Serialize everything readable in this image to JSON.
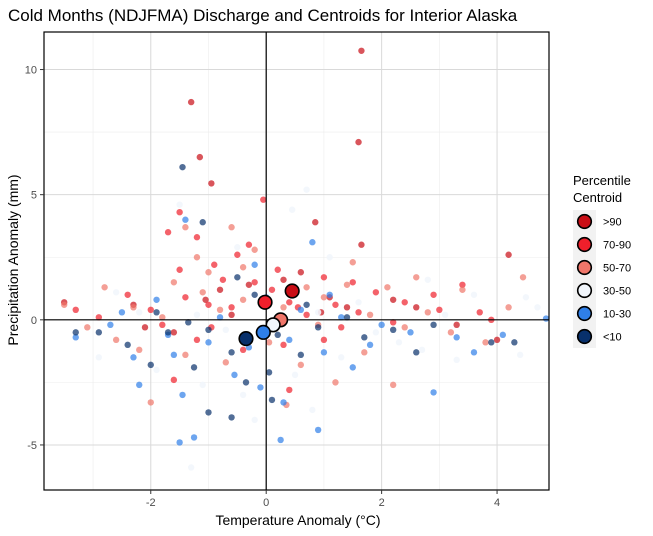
{
  "chart_data": {
    "type": "scatter",
    "title": "Cold Months (NDJFMA) Discharge and Centroids for Interior Alaska",
    "xlabel": "Temperature Anomaly (°C)",
    "ylabel": "Precipitation Anomaly (mm)",
    "xlim": [
      -3.85,
      4.9
    ],
    "ylim": [
      -6.8,
      11.5
    ],
    "x_ticks": [
      -2,
      0,
      2,
      4
    ],
    "y_ticks": [
      -5,
      0,
      5,
      10
    ],
    "x_tick_labels": [
      "-2",
      "0",
      "2",
      "4"
    ],
    "y_tick_labels": [
      "-5",
      "0",
      "5",
      "10"
    ],
    "grid": true,
    "reference_lines": {
      "x": 0,
      "y": 0
    },
    "legend": {
      "title_lines": [
        "Percentile",
        "Centroid"
      ],
      "position": "right",
      "entries": [
        {
          "label": ">90",
          "color": "#c90d15"
        },
        {
          "label": "70-90",
          "color": "#ef1f2b"
        },
        {
          "label": "50-70",
          "color": "#f0766a"
        },
        {
          "label": "30-50",
          "color": "#f2f6fc"
        },
        {
          "label": "10-30",
          "color": "#2f7fe8"
        },
        {
          "label": "<10",
          "color": "#08306b"
        }
      ]
    },
    "centroids": [
      {
        "series": ">90",
        "x": 0.45,
        "y": 1.15
      },
      {
        "series": "70-90",
        "x": -0.02,
        "y": 0.7
      },
      {
        "series": "50-70",
        "x": 0.25,
        "y": 0.0
      },
      {
        "series": "30-50",
        "x": 0.12,
        "y": -0.2
      },
      {
        "series": "10-30",
        "x": -0.05,
        "y": -0.5
      },
      {
        "series": "<10",
        "x": -0.35,
        "y": -0.75
      }
    ],
    "series": [
      {
        "name": ">90",
        "color": "#c90d15",
        "points": [
          [
            1.65,
            10.75
          ],
          [
            -1.3,
            8.7
          ],
          [
            1.6,
            7.1
          ],
          [
            -1.15,
            6.5
          ],
          [
            -0.95,
            5.45
          ],
          [
            0.85,
            3.9
          ],
          [
            1.65,
            3.0
          ],
          [
            4.2,
            2.6
          ],
          [
            0.6,
            1.9
          ],
          [
            0.3,
            1.6
          ],
          [
            -0.8,
            1.2
          ],
          [
            1.1,
            0.9
          ],
          [
            -2.3,
            0.6
          ],
          [
            2.6,
            0.5
          ],
          [
            -0.3,
            1.4
          ],
          [
            0.95,
            0.3
          ],
          [
            -3.5,
            0.7
          ],
          [
            3.3,
            -0.2
          ],
          [
            -1.6,
            -0.5
          ],
          [
            4.0,
            -0.8
          ],
          [
            -0.6,
            0.2
          ],
          [
            2.2,
            0.8
          ],
          [
            -2.1,
            -0.3
          ],
          [
            1.4,
            0.5
          ],
          [
            -1.05,
            0.8
          ]
        ]
      },
      {
        "name": "70-90",
        "color": "#ef1f2b",
        "points": [
          [
            -1.5,
            4.3
          ],
          [
            -0.05,
            4.8
          ],
          [
            -1.2,
            3.3
          ],
          [
            -1.7,
            3.5
          ],
          [
            -0.5,
            2.6
          ],
          [
            -0.9,
            2.2
          ],
          [
            -1.5,
            2.0
          ],
          [
            0.2,
            2.0
          ],
          [
            1.0,
            1.7
          ],
          [
            1.9,
            1.1
          ],
          [
            2.9,
            1.0
          ],
          [
            3.4,
            1.4
          ],
          [
            -2.4,
            1.0
          ],
          [
            -0.2,
            1.5
          ],
          [
            -0.6,
            0.5
          ],
          [
            -1.0,
            0.6
          ],
          [
            0.4,
            0.7
          ],
          [
            0.7,
            0.2
          ],
          [
            1.3,
            -0.3
          ],
          [
            1.6,
            0.3
          ],
          [
            2.2,
            -0.1
          ],
          [
            3.0,
            0.4
          ],
          [
            3.7,
            0.3
          ],
          [
            -2.9,
            0.1
          ],
          [
            -3.3,
            0.4
          ],
          [
            -1.8,
            -0.2
          ],
          [
            -1.2,
            -0.8
          ],
          [
            -0.4,
            -1.2
          ],
          [
            0.3,
            -1.0
          ],
          [
            1.0,
            -0.8
          ],
          [
            -1.6,
            -2.4
          ],
          [
            0.4,
            -2.8
          ],
          [
            -1.4,
            0.9
          ],
          [
            1.5,
            1.5
          ],
          [
            -0.3,
            3.0
          ],
          [
            2.4,
            0.7
          ],
          [
            -0.75,
            1.6
          ],
          [
            0.1,
            1.2
          ],
          [
            -2.0,
            0.4
          ],
          [
            1.2,
            0.6
          ],
          [
            3.9,
            0.0
          ],
          [
            -0.95,
            -0.3
          ],
          [
            0.55,
            0.5
          ]
        ]
      },
      {
        "name": "50-70",
        "color": "#f0766a",
        "points": [
          [
            -1.4,
            3.7
          ],
          [
            -0.6,
            3.7
          ],
          [
            -1.2,
            2.5
          ],
          [
            -0.4,
            2.1
          ],
          [
            1.5,
            2.3
          ],
          [
            -1.6,
            1.5
          ],
          [
            -2.8,
            1.3
          ],
          [
            -3.5,
            0.6
          ],
          [
            -2.3,
            0.5
          ],
          [
            -1.1,
            1.1
          ],
          [
            0.7,
            1.3
          ],
          [
            1.4,
            1.4
          ],
          [
            2.1,
            1.3
          ],
          [
            2.6,
            1.7
          ],
          [
            3.4,
            1.2
          ],
          [
            4.45,
            1.7
          ],
          [
            4.2,
            0.5
          ],
          [
            3.2,
            -0.5
          ],
          [
            2.4,
            -0.3
          ],
          [
            1.8,
            0.2
          ],
          [
            0.9,
            -0.2
          ],
          [
            0.3,
            0.5
          ],
          [
            -0.4,
            0.8
          ],
          [
            -1.8,
            0.1
          ],
          [
            -3.1,
            -0.3
          ],
          [
            -2.2,
            -1.2
          ],
          [
            -1.4,
            -1.4
          ],
          [
            -0.7,
            -1.7
          ],
          [
            0.6,
            -1.8
          ],
          [
            1.2,
            -2.5
          ],
          [
            -2.0,
            -3.3
          ],
          [
            0.35,
            -3.4
          ],
          [
            2.2,
            -2.6
          ],
          [
            -0.2,
            2.8
          ],
          [
            1.0,
            0.9
          ],
          [
            -1.0,
            1.9
          ],
          [
            2.8,
            0.3
          ],
          [
            -2.6,
            -0.8
          ],
          [
            0.05,
            -0.9
          ],
          [
            1.7,
            -1.3
          ],
          [
            3.8,
            -0.9
          ],
          [
            -0.8,
            0.4
          ]
        ]
      },
      {
        "name": "30-50",
        "color": "#f2f6fc",
        "points": [
          [
            -1.5,
            4.6
          ],
          [
            0.7,
            5.2
          ],
          [
            0.45,
            4.4
          ],
          [
            1.1,
            2.5
          ],
          [
            -0.5,
            2.9
          ],
          [
            2.8,
            1.6
          ],
          [
            3.6,
            1.0
          ],
          [
            4.5,
            0.9
          ],
          [
            4.7,
            0.5
          ],
          [
            -2.6,
            1.1
          ],
          [
            -1.2,
            0.2
          ],
          [
            0.9,
            0.3
          ],
          [
            1.9,
            -0.5
          ],
          [
            2.7,
            -1.2
          ],
          [
            3.3,
            -1.6
          ],
          [
            4.4,
            -1.4
          ],
          [
            -2.9,
            -1.5
          ],
          [
            -1.9,
            -2.0
          ],
          [
            -1.1,
            -2.6
          ],
          [
            -0.4,
            -3.0
          ],
          [
            0.5,
            -2.2
          ],
          [
            1.3,
            -1.5
          ],
          [
            -1.3,
            -5.9
          ],
          [
            0.8,
            -3.6
          ],
          [
            -0.2,
            -4.0
          ],
          [
            2.3,
            -0.9
          ],
          [
            -0.7,
            -0.4
          ],
          [
            1.6,
            0.7
          ],
          [
            -2.2,
            0.3
          ],
          [
            3.1,
            0.2
          ]
        ]
      },
      {
        "name": "10-30",
        "color": "#2f7fe8",
        "points": [
          [
            -1.4,
            4.0
          ],
          [
            0.8,
            3.1
          ],
          [
            -0.2,
            2.2
          ],
          [
            1.1,
            1.0
          ],
          [
            -2.5,
            0.3
          ],
          [
            -3.3,
            -0.7
          ],
          [
            -2.3,
            -1.5
          ],
          [
            -1.6,
            -1.4
          ],
          [
            -1.0,
            -0.9
          ],
          [
            -0.3,
            -1.1
          ],
          [
            0.4,
            -0.8
          ],
          [
            1.0,
            -1.3
          ],
          [
            1.8,
            -1.0
          ],
          [
            2.5,
            -0.5
          ],
          [
            3.3,
            -0.7
          ],
          [
            4.1,
            -0.6
          ],
          [
            4.85,
            0.05
          ],
          [
            -2.2,
            -2.6
          ],
          [
            -1.45,
            -3.0
          ],
          [
            -0.55,
            -2.2
          ],
          [
            0.3,
            -3.3
          ],
          [
            0.9,
            -4.4
          ],
          [
            -1.5,
            -4.9
          ],
          [
            -1.25,
            -4.7
          ],
          [
            0.25,
            -4.8
          ],
          [
            2.9,
            -2.9
          ],
          [
            1.5,
            -1.9
          ],
          [
            -0.8,
            0.1
          ],
          [
            0.6,
            0.4
          ],
          [
            -1.9,
            0.8
          ],
          [
            -2.7,
            -0.2
          ],
          [
            2.0,
            -0.2
          ],
          [
            3.6,
            -1.3
          ],
          [
            -0.1,
            -2.7
          ],
          [
            1.3,
            0.1
          ],
          [
            -1.7,
            -0.6
          ],
          [
            0.0,
            0.9
          ]
        ]
      },
      {
        "name": "<10",
        "color": "#08306b",
        "points": [
          [
            -1.45,
            6.1
          ],
          [
            -1.1,
            3.9
          ],
          [
            -0.5,
            1.7
          ],
          [
            -1.9,
            0.3
          ],
          [
            -3.3,
            -0.5
          ],
          [
            -2.4,
            -1.0
          ],
          [
            -1.7,
            -0.5
          ],
          [
            -1.0,
            -0.4
          ],
          [
            -0.6,
            -1.3
          ],
          [
            0.2,
            -0.6
          ],
          [
            0.9,
            -0.3
          ],
          [
            1.4,
            0.1
          ],
          [
            2.2,
            -0.4
          ],
          [
            2.9,
            -0.2
          ],
          [
            3.9,
            -0.9
          ],
          [
            4.3,
            -0.9
          ],
          [
            -2.0,
            -1.8
          ],
          [
            -1.25,
            -1.9
          ],
          [
            -0.35,
            -2.5
          ],
          [
            0.05,
            -2.1
          ],
          [
            0.6,
            -1.4
          ],
          [
            -0.6,
            -3.9
          ],
          [
            -1.0,
            -3.7
          ],
          [
            0.1,
            -3.2
          ],
          [
            -2.9,
            -0.5
          ],
          [
            1.7,
            -0.7
          ],
          [
            -0.2,
            1.0
          ],
          [
            -1.35,
            -0.1
          ],
          [
            0.7,
            0.6
          ],
          [
            2.6,
            -1.3
          ]
        ]
      }
    ]
  }
}
